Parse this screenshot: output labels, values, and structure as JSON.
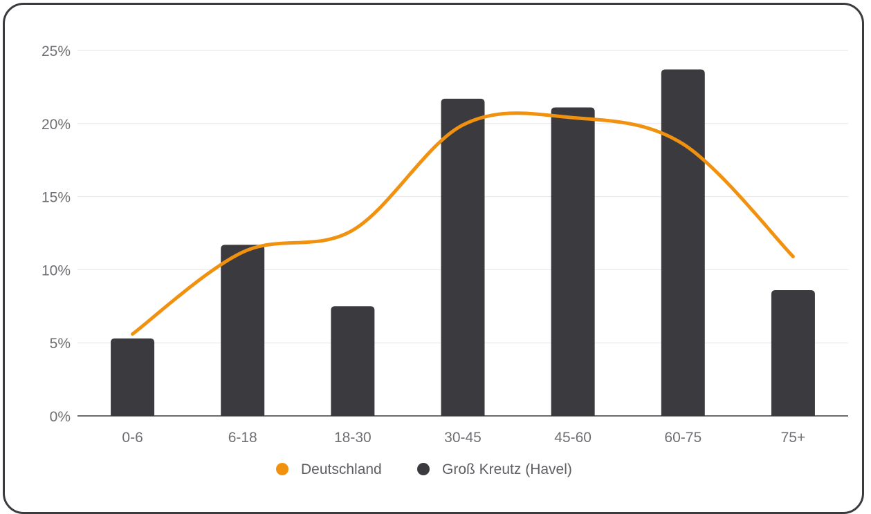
{
  "chart_data": {
    "type": "bar",
    "categories": [
      "0-6",
      "6-18",
      "18-30",
      "30-45",
      "45-60",
      "60-75",
      "75+"
    ],
    "series": [
      {
        "name": "Groß Kreutz (Havel)",
        "type": "bar",
        "color": "#3b3a3e",
        "values": [
          5.3,
          11.7,
          7.5,
          21.7,
          21.1,
          23.7,
          8.6
        ]
      },
      {
        "name": "Deutschland",
        "type": "line",
        "color": "#f0920f",
        "values": [
          5.6,
          11.2,
          12.7,
          19.9,
          20.4,
          18.6,
          10.9
        ]
      }
    ],
    "y_ticks": [
      "0%",
      "5%",
      "10%",
      "15%",
      "20%",
      "25%"
    ],
    "ylim": [
      0,
      25
    ],
    "grid": true,
    "legend_position": "bottom"
  },
  "legend": {
    "items": [
      {
        "label": "Deutschland",
        "color": "#f0920f"
      },
      {
        "label": "Groß Kreutz (Havel)",
        "color": "#3b3a3e"
      }
    ]
  }
}
